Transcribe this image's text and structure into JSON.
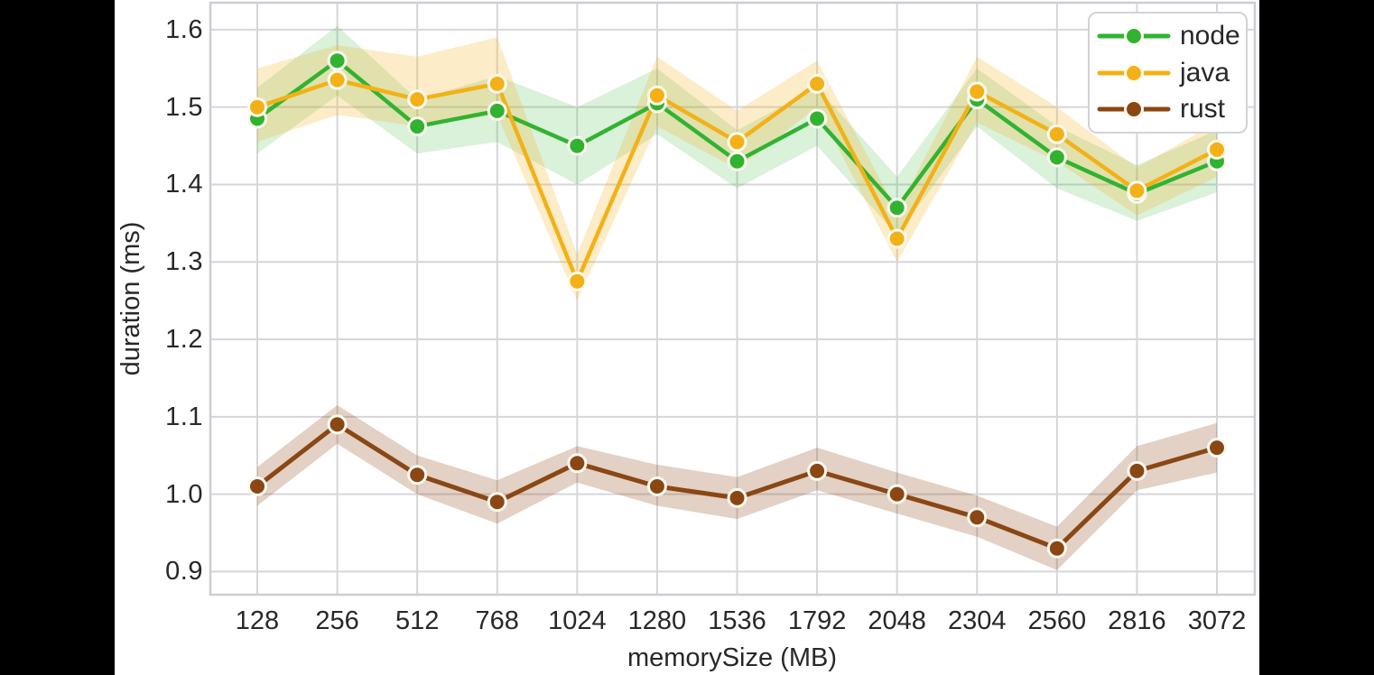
{
  "chart_data": {
    "type": "line",
    "title": "",
    "xlabel": "memorySize (MB)",
    "ylabel": "duration (ms)",
    "categories": [
      128,
      256,
      512,
      768,
      1024,
      1280,
      1536,
      1792,
      2048,
      2304,
      2560,
      2816,
      3072
    ],
    "x_tick_labels": [
      "128",
      "256",
      "512",
      "768",
      "1024",
      "1280",
      "1536",
      "1792",
      "2048",
      "2304",
      "2560",
      "2816",
      "3072"
    ],
    "y_tick_labels": [
      "1.6",
      "1.5",
      "1.4",
      "1.3",
      "1.2",
      "1.1",
      "1.0",
      "0.9"
    ],
    "ylim": [
      0.87,
      1.635
    ],
    "grid": true,
    "legend_position": "upper right",
    "marker_edge_color": "#fdfaf0",
    "series": [
      {
        "name": "node",
        "color": "#31b331",
        "band_opacity": 0.18,
        "line_width": 4.5,
        "values": [
          1.485,
          1.56,
          1.475,
          1.495,
          1.45,
          1.505,
          1.43,
          1.485,
          1.37,
          1.51,
          1.435,
          1.388,
          1.43
        ],
        "band_lo": [
          1.44,
          1.515,
          1.44,
          1.455,
          1.4,
          1.465,
          1.395,
          1.45,
          1.335,
          1.475,
          1.395,
          1.353,
          1.39
        ],
        "band_hi": [
          1.525,
          1.605,
          1.51,
          1.54,
          1.5,
          1.55,
          1.47,
          1.525,
          1.41,
          1.55,
          1.475,
          1.425,
          1.47
        ]
      },
      {
        "name": "java",
        "color": "#f3b117",
        "band_opacity": 0.24,
        "line_width": 4.5,
        "values": [
          1.5,
          1.535,
          1.51,
          1.53,
          1.275,
          1.515,
          1.455,
          1.53,
          1.33,
          1.52,
          1.465,
          1.392,
          1.445
        ],
        "band_lo": [
          1.455,
          1.49,
          1.475,
          1.49,
          1.25,
          1.475,
          1.42,
          1.5,
          1.3,
          1.48,
          1.43,
          1.36,
          1.41
        ],
        "band_hi": [
          1.55,
          1.58,
          1.565,
          1.59,
          1.31,
          1.565,
          1.495,
          1.56,
          1.365,
          1.565,
          1.5,
          1.422,
          1.48
        ]
      },
      {
        "name": "rust",
        "color": "#8a4714",
        "band_opacity": 0.25,
        "line_width": 5,
        "values": [
          1.01,
          1.09,
          1.025,
          0.99,
          1.04,
          1.01,
          0.995,
          1.03,
          1.0,
          0.97,
          0.93,
          1.03,
          1.06
        ],
        "band_lo": [
          0.985,
          1.065,
          1.0,
          0.962,
          1.015,
          0.985,
          0.968,
          1.005,
          0.975,
          0.945,
          0.902,
          1.005,
          1.028
        ],
        "band_hi": [
          1.035,
          1.115,
          1.05,
          1.018,
          1.062,
          1.038,
          1.022,
          1.06,
          1.028,
          0.998,
          0.958,
          1.062,
          1.092
        ]
      }
    ]
  },
  "style_colors": {
    "figure_background": "#ffffff",
    "page_background": "#000000",
    "grid_color": "#d6d6da",
    "spine_color": "#cdcdd4",
    "text_color": "#28282b",
    "legend_border": "#d2d2d8"
  }
}
